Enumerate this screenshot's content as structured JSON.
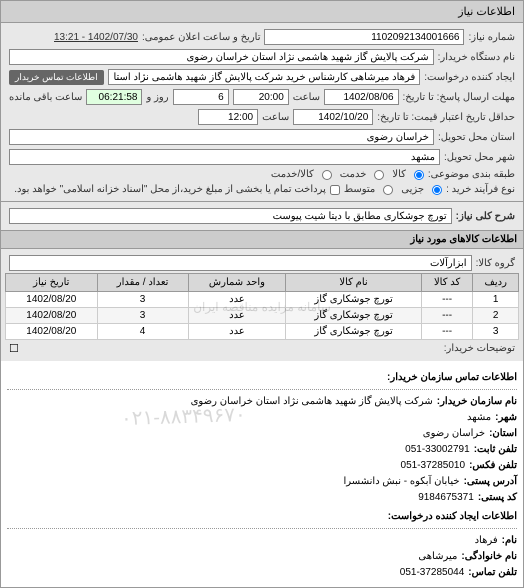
{
  "header": {
    "tab": "اطلاعات نیاز"
  },
  "top": {
    "request_no_label": "شماره نیاز:",
    "request_no": "1102092134001666",
    "announce_label": "تاریخ و ساعت اعلان عمومی:",
    "announce_value": "1402/07/30 - 13:21",
    "buyer_org_label": "نام دستگاه خریدار:",
    "buyer_org": "شرکت پالایش گاز شهید هاشمی نژاد   استان خراسان رضوی",
    "creator_label": "ایجاد کننده درخواست:",
    "creator": "فرهاد میرشاهی کارشناس خرید شرکت پالایش گاز شهید هاشمی نژاد   استا",
    "creator_badge": "اطلاعات تماس خریدار",
    "reply_deadline_label": "مهلت ارسال پاسخ: تا تاریخ:",
    "reply_date": "1402/08/06",
    "time_label": "ساعت",
    "reply_time": "20:00",
    "days_label": "روز و",
    "days": "6",
    "remain_label": "ساعت باقی مانده",
    "remain_time": "06:21:58",
    "valid_label": "حداقل تاریخ اعتبار قیمت: تا تاریخ:",
    "valid_date": "1402/10/20",
    "valid_time": "12:00",
    "province_label": "استان محل تحویل:",
    "province": "خراسان رضوی",
    "city_label": "شهر محل تحویل:",
    "city": "مشهد",
    "category_label": "طبقه بندی موضوعی:",
    "cat_goods": "کالا",
    "cat_service": "خدمت",
    "cat_goods_service": "کالا/خدمت",
    "size_label": "نوع فرآیند خرید :",
    "size_partial": "جزیی",
    "size_medium": "متوسط",
    "size_note": "پرداخت تمام یا بخشی از مبلغ خرید،از محل \"اسناد خزانه اسلامی\" خواهد بود."
  },
  "need": {
    "title_label": "شرح کلی نیاز:",
    "title": "تورچ جوشکاری مطابق با دیتا شیت پیوست"
  },
  "goods": {
    "section": "اطلاعات کالاهای مورد نیاز",
    "group_label": "گروه کالا:",
    "group": "ابزارآلات",
    "columns": [
      "ردیف",
      "کد کالا",
      "نام کالا",
      "واحد شمارش",
      "تعداد / مقدار",
      "تاریخ نیاز"
    ],
    "rows": [
      [
        "1",
        "---",
        "تورچ جوشکاری گاز",
        "عدد",
        "3",
        "1402/08/20"
      ],
      [
        "2",
        "---",
        "تورچ جوشکاری گاز",
        "عدد",
        "3",
        "1402/08/20"
      ],
      [
        "3",
        "---",
        "تورچ جوشکاری گاز",
        "عدد",
        "4",
        "1402/08/20"
      ]
    ],
    "watermark": "سامانه مزایده مناقصه ایران",
    "delivery_label": "توضیحات خریدار:",
    "expand": "☐"
  },
  "contact": {
    "section": "اطلاعات تماس سازمان خریدار:",
    "org_k": "نام سازمان خریدار:",
    "org_v": "شرکت پالایش گاز شهید هاشمی نژاد استان خراسان رضوی",
    "city_k": "شهر:",
    "city_v": "مشهد",
    "province_k": "استان:",
    "province_v": "خراسان رضوی",
    "phone_k": "تلفن ثابت:",
    "phone_v": "051-33002791",
    "fax_k": "تلفن فکس:",
    "fax_v": "051-37285010",
    "address_k": "آدرس پستی:",
    "address_v": "خیابان آبکوه - نبش دانشسرا",
    "postal_k": "کد پستی:",
    "postal_v": "9184675371",
    "creator_section": "اطلاعات ایجاد کننده درخواست:",
    "fname_k": "نام:",
    "fname_v": "فرهاد",
    "lname_k": "نام خانوادگی:",
    "lname_v": "میرشاهی",
    "cphone_k": "تلفن تماس:",
    "cphone_v": "051-37285044",
    "overlay": "۰۲۱-۸۸۳۴۹۶۷۰"
  }
}
